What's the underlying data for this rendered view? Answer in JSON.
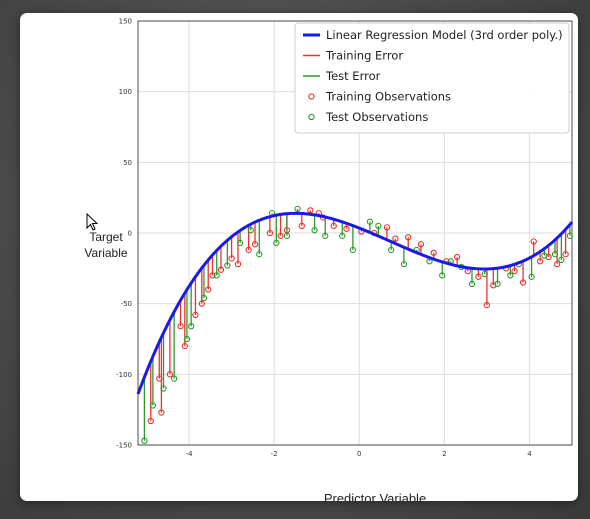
{
  "chart_data": {
    "type": "scatter",
    "title": "",
    "xlabel": "Predictor Variable",
    "ylabel": "Target Variable",
    "xlim": [
      -5.2,
      5
    ],
    "ylim": [
      -150,
      150
    ],
    "x_ticks": [
      -4,
      -2,
      0,
      2,
      4
    ],
    "x_tick_labels": [
      "-4",
      "-2",
      "0",
      "2",
      "4"
    ],
    "y_ticks": [
      -150,
      -100,
      -50,
      0,
      50,
      100,
      150
    ],
    "y_tick_labels": [
      "-150",
      "-100",
      "-50",
      "0",
      "50",
      "100",
      "150"
    ],
    "grid": true,
    "legend_position": "top-right",
    "colors": {
      "model": "#1a1ae6",
      "training": "#e8322e",
      "test": "#2e9a2e",
      "grid": "#dddddd"
    },
    "model": {
      "name": "Linear Regression Model (3rd order poly.)",
      "coefficients": [
        3.5,
        -11.9,
        -1.95,
        0.9
      ]
    },
    "legend": [
      {
        "key": "model",
        "label": "Linear Regression Model (3rd order poly.)",
        "kind": "line"
      },
      {
        "key": "training",
        "label": "Training Error",
        "kind": "line"
      },
      {
        "key": "test",
        "label": "Test Error",
        "kind": "line"
      },
      {
        "key": "training",
        "label": "Training Observations",
        "kind": "marker"
      },
      {
        "key": "test",
        "label": "Test Observations",
        "kind": "marker"
      }
    ],
    "series": [
      {
        "name": "Training Observations",
        "x": [
          -4.9,
          -4.7,
          -4.65,
          -4.45,
          -4.2,
          -4.1,
          -3.85,
          -3.7,
          -3.55,
          -3.45,
          -3.25,
          -3.0,
          -2.85,
          -2.6,
          -2.45,
          -2.1,
          -1.85,
          -1.7,
          -1.35,
          -1.15,
          -0.95,
          -0.85,
          -0.6,
          -0.3,
          0.05,
          0.35,
          0.65,
          0.85,
          1.15,
          1.45,
          1.75,
          2.05,
          2.3,
          2.55,
          2.8,
          3.0,
          3.15,
          3.45,
          3.65,
          3.85,
          4.1,
          4.25,
          4.45,
          4.65,
          4.85
        ],
        "y": [
          -133,
          -103,
          -127,
          -100,
          -66,
          -80,
          -58,
          -50,
          -40,
          -30,
          -26,
          -18,
          -22,
          -12,
          -8,
          0,
          -2,
          2,
          5,
          16,
          14,
          11,
          5,
          3,
          1,
          0,
          4,
          -4,
          -3,
          -8,
          -14,
          -20,
          -17,
          -27,
          -31,
          -51,
          -37,
          -25,
          -27,
          -35,
          -6,
          -20,
          -17,
          -22,
          -15
        ]
      },
      {
        "name": "Test Observations",
        "x": [
          -5.05,
          -4.85,
          -4.6,
          -4.35,
          -4.05,
          -3.95,
          -3.65,
          -3.35,
          -3.1,
          -2.8,
          -2.55,
          -2.35,
          -2.05,
          -1.95,
          -1.7,
          -1.45,
          -1.05,
          -0.8,
          -0.4,
          -0.15,
          0.25,
          0.45,
          0.75,
          1.05,
          1.35,
          1.65,
          1.95,
          2.15,
          2.4,
          2.65,
          2.95,
          3.25,
          3.55,
          3.75,
          4.05,
          4.35,
          4.6,
          4.75,
          4.95
        ],
        "y": [
          -147,
          -122,
          -110,
          -103,
          -75,
          -66,
          -46,
          -30,
          -23,
          -7,
          2,
          -15,
          14,
          -7,
          -2,
          17,
          2,
          -2,
          -2,
          -12,
          8,
          5,
          -12,
          -22,
          -12,
          -20,
          -30,
          -20,
          -24,
          -36,
          -29,
          -36,
          -30,
          -22,
          -31,
          -16,
          -15,
          -19,
          -2
        ]
      }
    ]
  }
}
